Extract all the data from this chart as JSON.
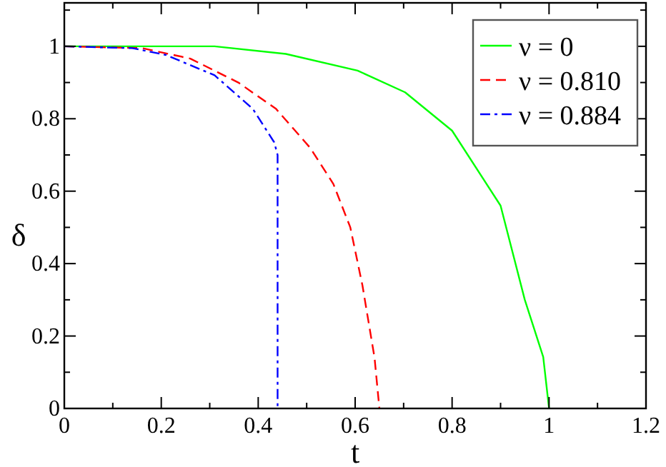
{
  "chart_data": {
    "type": "line",
    "xlabel": "t",
    "ylabel": "δ",
    "xlim": [
      0,
      1.2
    ],
    "ylim": [
      0,
      1.12
    ],
    "xticks": [
      0,
      0.2,
      0.4,
      0.6,
      0.8,
      1,
      1.2
    ],
    "yticks": [
      0,
      0.2,
      0.4,
      0.6,
      0.8,
      1
    ],
    "grid": false,
    "legend": "top right",
    "marker": "none",
    "series": [
      {
        "name": "ν = 0",
        "color": "#00ff00",
        "line_style": "solid",
        "x": [
          0,
          0.31,
          0.457,
          0.605,
          0.703,
          0.8,
          0.9,
          0.95,
          0.988,
          1
        ],
        "values": [
          1,
          1,
          0.979,
          0.933,
          0.873,
          0.767,
          0.56,
          0.3,
          0.142,
          0
        ]
      },
      {
        "name": "ν = 0.810",
        "color": "#ff0000",
        "line_style": "dashed",
        "x": [
          0,
          0.16,
          0.26,
          0.359,
          0.437,
          0.507,
          0.555,
          0.59,
          0.615,
          0.64,
          0.65
        ],
        "values": [
          1,
          0.995,
          0.966,
          0.9,
          0.827,
          0.72,
          0.62,
          0.5,
          0.34,
          0.14,
          0
        ]
      },
      {
        "name": "ν = 0.884",
        "color": "#0000ff",
        "line_style": "dashdot",
        "x": [
          0,
          0.14,
          0.21,
          0.31,
          0.389,
          0.433,
          0.44,
          0.44
        ],
        "values": [
          1,
          0.995,
          0.976,
          0.92,
          0.827,
          0.735,
          0.7,
          0
        ]
      }
    ]
  }
}
